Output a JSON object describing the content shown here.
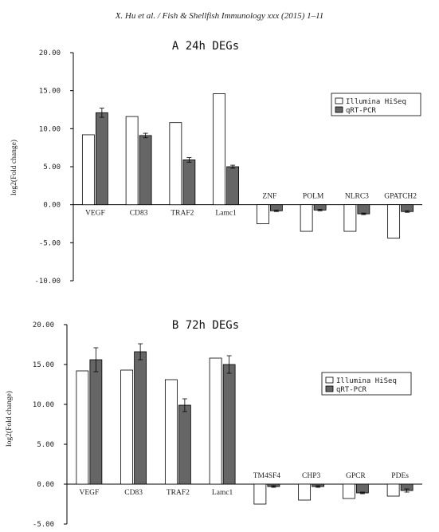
{
  "header": "X. Hu et al. / Fish & Shellfish Immunology xxx (2015) 1–11",
  "colors": {
    "illumina": "#ffffff",
    "qrtpcr": "#666666",
    "axis": "#000000"
  },
  "chart_data": [
    {
      "type": "bar",
      "title": "A   24h DEGs",
      "ylabel": "log2(Fold change)",
      "ylim": [
        -10,
        20
      ],
      "yticks": [
        "20.00",
        "15.00",
        "10.00",
        "5.00",
        "0.00",
        "-5.00",
        "-10.00"
      ],
      "legend_position": "right",
      "categories": [
        "VEGF",
        "CD83",
        "TRAF2",
        "Lamc1",
        "ZNF",
        "POLM",
        "NLRC3",
        "GPATCH2"
      ],
      "series": [
        {
          "name": "Illumina HiSeq",
          "values": [
            9.2,
            11.6,
            10.8,
            14.6,
            -2.5,
            -3.5,
            -3.5,
            -4.4
          ]
        },
        {
          "name": "qRT-PCR",
          "values": [
            12.1,
            9.1,
            5.9,
            5.0,
            -0.8,
            -0.7,
            -1.2,
            -0.9
          ],
          "errors": [
            0.6,
            0.3,
            0.3,
            0.2,
            0.1,
            0.1,
            0.1,
            0.1
          ]
        }
      ]
    },
    {
      "type": "bar",
      "title": "B   72h DEGs",
      "ylabel": "log2(Fold change)",
      "ylim": [
        -5,
        20
      ],
      "yticks": [
        "20.00",
        "15.00",
        "10.00",
        "5.00",
        "0.00",
        "-5.00"
      ],
      "legend_position": "right",
      "categories": [
        "VEGF",
        "CD83",
        "TRAF2",
        "Lamc1",
        "TM4SF4",
        "CHP3",
        "GPCR",
        "PDEs"
      ],
      "series": [
        {
          "name": "Illumina HiSeq",
          "values": [
            14.2,
            14.3,
            13.1,
            15.8,
            -2.5,
            -2.0,
            -1.8,
            -1.5
          ]
        },
        {
          "name": "qRT-PCR",
          "values": [
            15.6,
            16.6,
            9.9,
            15.0,
            -0.3,
            -0.3,
            -1.1,
            -0.8
          ],
          "errors": [
            1.5,
            1.0,
            0.8,
            1.1,
            0.1,
            0.1,
            0.1,
            0.2
          ]
        }
      ]
    }
  ]
}
